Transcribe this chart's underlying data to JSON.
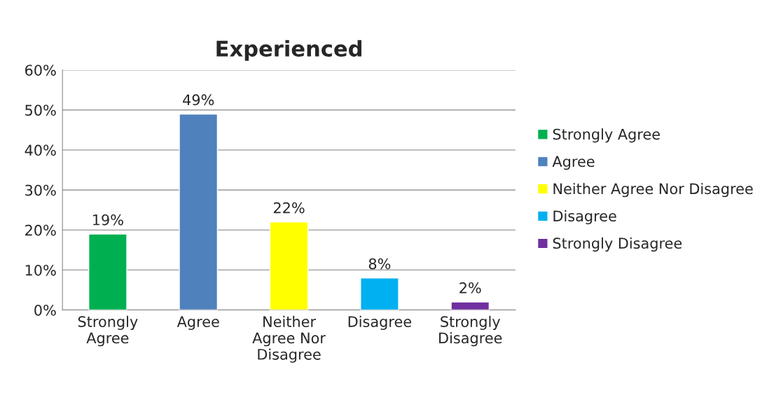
{
  "chart_data": {
    "type": "bar",
    "title": "Experienced",
    "categories": [
      "Strongly Agree",
      "Agree",
      "Neither Agree Nor Disagree",
      "Disagree",
      "Strongly Disagree"
    ],
    "series": [
      {
        "name": "Strongly Agree",
        "color": "#00b050",
        "values": [
          19,
          null,
          null,
          null,
          null
        ],
        "value_labels": [
          "19%",
          null,
          null,
          null,
          null
        ]
      },
      {
        "name": "Agree",
        "color": "#4f81bd",
        "values": [
          null,
          49,
          null,
          null,
          null
        ],
        "value_labels": [
          null,
          "49%",
          null,
          null,
          null
        ]
      },
      {
        "name": "Neither Agree Nor Disagree",
        "color": "#ffff00",
        "values": [
          null,
          null,
          22,
          null,
          null
        ],
        "value_labels": [
          null,
          null,
          "22%",
          null,
          null
        ]
      },
      {
        "name": "Disagree",
        "color": "#00b0f0",
        "values": [
          null,
          null,
          null,
          8,
          null
        ],
        "value_labels": [
          null,
          null,
          null,
          "8%",
          null
        ]
      },
      {
        "name": "Strongly Disagree",
        "color": "#7030a0",
        "values": [
          null,
          null,
          null,
          null,
          2
        ],
        "value_labels": [
          null,
          null,
          null,
          null,
          "2%"
        ]
      }
    ],
    "ylim": [
      0,
      60
    ],
    "yticks": [
      {
        "value": 0,
        "label": "0%"
      },
      {
        "value": 10,
        "label": "10%"
      },
      {
        "value": 20,
        "label": "20%"
      },
      {
        "value": 30,
        "label": "30%"
      },
      {
        "value": 40,
        "label": "40%"
      },
      {
        "value": 50,
        "label": "50%"
      },
      {
        "value": 60,
        "label": "60%"
      }
    ],
    "grid": "y",
    "legend": "right"
  }
}
